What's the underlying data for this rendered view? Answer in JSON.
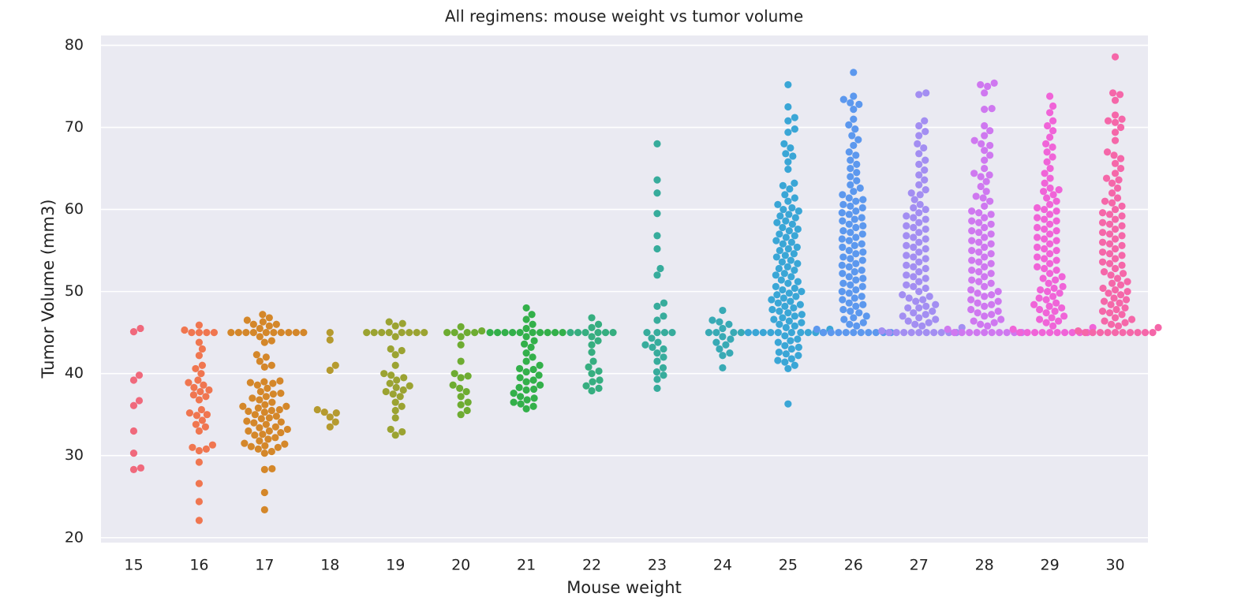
{
  "chart_data": {
    "type": "swarm",
    "title": "All regimens: mouse weight vs tumor volume",
    "x_label": "Mouse weight",
    "y_label": "Tumor Volume (mm3)",
    "categories": [
      "15",
      "16",
      "17",
      "18",
      "19",
      "20",
      "21",
      "22",
      "23",
      "24",
      "25",
      "26",
      "27",
      "28",
      "29",
      "30"
    ],
    "colors": [
      "#f0697c",
      "#f07650",
      "#d4872a",
      "#b59a2f",
      "#9ba332",
      "#6eac32",
      "#33b04a",
      "#36ae80",
      "#37ac9c",
      "#38aab5",
      "#3aa6d6",
      "#5c98ee",
      "#a38ef2",
      "#cf78f0",
      "#f064d8",
      "#f567a9"
    ],
    "values": [
      [
        45.5,
        45.1,
        39.8,
        39.2,
        36.7,
        36.1,
        33.0,
        30.3,
        28.3,
        28.5
      ],
      [
        45.0,
        45.0,
        45.0,
        45.0,
        45.9,
        45.3,
        43.8,
        43.0,
        42.2,
        41.0,
        40.6,
        40.0,
        39.2,
        38.9,
        38.6,
        38.3,
        38.0,
        37.8,
        37.4,
        37.2,
        36.8,
        35.6,
        35.2,
        35.0,
        34.9,
        34.3,
        33.8,
        33.5,
        33.0,
        31.3,
        31.0,
        30.8,
        30.6,
        29.2,
        26.6,
        24.4,
        22.1
      ],
      [
        45.0,
        45.0,
        45.0,
        45.0,
        45.0,
        45.0,
        45.0,
        45.0,
        45.0,
        45.0,
        46.0,
        46.5,
        47.2,
        46.8,
        46.3,
        45.5,
        45.8,
        46.0,
        44.5,
        44.0,
        43.8,
        42.3,
        42.0,
        41.5,
        41.0,
        40.8,
        39.0,
        38.8,
        38.6,
        38.2,
        37.8,
        37.5,
        37.2,
        37.0,
        36.8,
        36.5,
        36.2,
        36.0,
        35.8,
        35.5,
        35.3,
        35.0,
        34.8,
        34.5,
        34.2,
        34.0,
        33.8,
        33.5,
        33.2,
        33.0,
        32.8,
        32.5,
        32.2,
        31.8,
        31.5,
        31.2,
        31.0,
        30.8,
        30.5,
        30.3,
        28.4,
        28.3,
        25.5,
        23.4,
        36.0,
        35.4,
        34.6,
        33.4,
        32.0,
        31.1,
        37.6,
        38.9,
        39.1,
        35.6,
        34.1,
        33.0,
        32.6,
        31.4
      ],
      [
        45.0,
        44.1,
        41.0,
        40.4,
        35.6,
        35.2,
        35.3,
        34.7,
        34.1,
        33.5
      ],
      [
        45.0,
        45.0,
        45.0,
        45.0,
        45.0,
        45.0,
        45.0,
        45.0,
        46.3,
        46.1,
        45.8,
        44.5,
        43.0,
        42.8,
        42.3,
        41.0,
        40.0,
        39.8,
        39.5,
        39.2,
        38.8,
        38.5,
        38.3,
        38.0,
        37.8,
        37.5,
        37.2,
        36.5,
        36.0,
        35.5,
        34.6,
        33.2,
        32.9,
        32.5
      ],
      [
        45.0,
        45.0,
        45.0,
        45.0,
        45.7,
        45.2,
        44.5,
        43.5,
        41.5,
        40.0,
        39.7,
        39.5,
        38.6,
        38.2,
        37.8,
        37.2,
        36.5,
        36.2,
        35.5,
        35.0
      ],
      [
        45.0,
        45.0,
        45.0,
        45.0,
        45.0,
        45.0,
        45.0,
        45.0,
        45.0,
        45.0,
        48.0,
        47.2,
        46.6,
        46.0,
        45.5,
        44.5,
        44.0,
        43.6,
        43.2,
        42.5,
        42.0,
        41.5,
        41.0,
        40.6,
        40.2,
        39.8,
        39.5,
        39.0,
        38.6,
        38.3,
        38.0,
        37.6,
        37.2,
        36.8,
        36.5,
        36.0,
        35.7,
        40.5,
        39.2,
        38.1,
        37.0,
        36.3
      ],
      [
        45.0,
        45.0,
        45.0,
        45.0,
        45.0,
        45.0,
        46.8,
        46.0,
        45.6,
        44.5,
        44.0,
        43.5,
        42.6,
        41.5,
        40.8,
        40.3,
        40.0,
        39.2,
        39.0,
        38.5,
        38.2,
        37.9
      ],
      [
        68.0,
        63.6,
        62.0,
        59.5,
        56.8,
        55.2,
        52.8,
        52.0,
        48.6,
        48.2,
        47.0,
        46.5,
        45.0,
        45.0,
        45.0,
        45.0,
        44.3,
        43.8,
        43.5,
        43.2,
        43.0,
        42.5,
        42.0,
        41.5,
        40.7,
        40.2,
        39.8,
        39.3,
        38.2
      ],
      [
        47.7,
        46.5,
        46.3,
        46.0,
        45.5,
        45.0,
        45.0,
        45.0,
        45.0,
        44.5,
        44.2,
        43.8,
        43.5,
        43.0,
        42.5,
        42.2,
        40.7
      ],
      [
        75.2,
        72.5,
        71.2,
        70.8,
        69.8,
        69.4,
        68.0,
        67.5,
        66.8,
        66.5,
        65.8,
        64.9,
        63.2,
        62.9,
        62.5,
        61.8,
        61.4,
        61.0,
        60.6,
        60.2,
        59.8,
        59.4,
        59.0,
        58.6,
        58.2,
        57.8,
        57.4,
        57.0,
        56.6,
        56.2,
        55.8,
        55.4,
        55.0,
        54.6,
        54.2,
        53.8,
        53.4,
        53.0,
        52.6,
        52.2,
        51.8,
        51.4,
        51.0,
        50.6,
        50.2,
        49.8,
        49.4,
        49.0,
        48.6,
        48.2,
        47.8,
        47.4,
        47.0,
        46.6,
        46.2,
        45.8,
        45.4,
        60.0,
        59.2,
        58.4,
        57.6,
        56.8,
        56.0,
        55.2,
        54.4,
        53.6,
        52.8,
        52.0,
        51.2,
        50.4,
        49.6,
        48.8,
        48.0,
        47.2,
        46.4,
        45.6,
        50.0,
        49.2,
        48.4,
        47.6,
        46.8,
        46.0,
        45.0,
        45.0,
        45.0,
        45.0,
        45.0,
        45.0,
        45.0,
        45.0,
        45.0,
        45.0,
        44.6,
        44.2,
        43.8,
        43.4,
        43.0,
        42.6,
        42.2,
        41.8,
        41.4,
        41.0,
        40.6,
        44.0,
        43.2,
        42.4,
        41.6,
        36.3
      ],
      [
        76.7,
        73.8,
        73.4,
        73.0,
        72.8,
        72.2,
        71.0,
        70.3,
        69.8,
        69.0,
        68.5,
        67.8,
        67.0,
        66.6,
        66.0,
        65.5,
        65.0,
        64.5,
        64.0,
        63.5,
        63.0,
        62.6,
        62.2,
        61.8,
        61.4,
        61.0,
        60.6,
        60.2,
        59.8,
        59.4,
        59.0,
        58.6,
        58.2,
        57.8,
        57.4,
        57.0,
        56.6,
        56.2,
        55.8,
        55.4,
        55.0,
        54.6,
        54.2,
        53.8,
        53.4,
        53.0,
        52.6,
        52.2,
        51.8,
        51.4,
        51.0,
        50.6,
        50.2,
        49.8,
        49.4,
        49.0,
        48.6,
        48.2,
        47.8,
        47.4,
        47.0,
        46.6,
        46.2,
        45.8,
        45.4,
        61.2,
        60.4,
        59.6,
        58.8,
        58.0,
        57.2,
        56.4,
        55.6,
        54.8,
        54.0,
        53.2,
        52.4,
        51.6,
        50.8,
        50.0,
        49.2,
        48.4,
        47.6,
        46.8,
        46.0,
        45.0,
        45.0,
        45.0,
        45.0,
        45.0,
        45.0,
        45.0,
        45.0,
        45.0,
        45.0
      ],
      [
        74.2,
        74.0,
        70.8,
        70.2,
        69.5,
        69.0,
        68.0,
        67.5,
        66.8,
        66.0,
        65.5,
        64.8,
        64.2,
        63.6,
        63.0,
        62.4,
        61.8,
        61.2,
        60.6,
        60.0,
        59.6,
        59.2,
        58.8,
        58.4,
        58.0,
        57.6,
        57.2,
        56.8,
        56.4,
        56.0,
        55.6,
        55.2,
        54.8,
        54.4,
        54.0,
        53.6,
        53.2,
        52.8,
        52.4,
        52.0,
        51.6,
        51.2,
        50.8,
        50.4,
        50.0,
        49.6,
        49.2,
        48.8,
        48.4,
        48.0,
        47.6,
        47.2,
        46.8,
        46.4,
        46.0,
        45.6,
        45.2,
        62.0,
        60.2,
        59.0,
        57.8,
        56.6,
        55.4,
        54.2,
        53.0,
        51.8,
        50.6,
        49.4,
        48.2,
        47.0,
        46.2,
        49.0,
        48.0,
        47.4,
        46.6,
        45.8,
        45.0,
        45.0,
        45.0,
        45.0,
        45.0,
        45.0,
        45.0,
        45.0,
        45.0,
        45.0
      ],
      [
        75.4,
        75.2,
        75.0,
        74.2,
        72.3,
        72.2,
        70.2,
        69.6,
        69.0,
        68.4,
        68.0,
        67.8,
        67.2,
        66.6,
        66.0,
        65.0,
        64.4,
        64.0,
        63.4,
        62.8,
        62.2,
        61.6,
        61.0,
        60.4,
        59.8,
        59.4,
        59.0,
        58.6,
        58.2,
        57.8,
        57.4,
        57.0,
        56.6,
        56.2,
        55.8,
        55.4,
        55.0,
        54.6,
        54.2,
        53.8,
        53.4,
        53.0,
        52.6,
        52.2,
        51.8,
        51.4,
        51.0,
        50.6,
        50.2,
        49.8,
        49.4,
        49.0,
        48.6,
        48.2,
        47.8,
        47.4,
        47.0,
        46.6,
        46.2,
        45.8,
        45.4,
        64.2,
        61.4,
        59.6,
        58.4,
        57.2,
        56.0,
        54.8,
        53.6,
        52.4,
        51.2,
        50.0,
        48.8,
        47.6,
        46.4,
        49.6,
        48.4,
        47.2,
        46.0,
        45.0,
        45.0,
        45.0,
        45.0,
        45.0,
        45.0,
        45.0,
        45.0,
        45.0,
        45.0
      ],
      [
        73.8,
        72.6,
        71.8,
        70.8,
        70.2,
        69.6,
        68.8,
        68.0,
        67.6,
        67.0,
        66.4,
        65.8,
        65.0,
        64.4,
        63.8,
        63.2,
        62.6,
        62.2,
        61.8,
        61.4,
        61.0,
        60.6,
        60.2,
        59.8,
        59.4,
        59.0,
        58.6,
        58.2,
        57.8,
        57.4,
        57.0,
        56.6,
        56.2,
        55.8,
        55.4,
        55.0,
        54.6,
        54.2,
        53.8,
        53.4,
        53.0,
        52.6,
        52.2,
        51.8,
        51.4,
        51.0,
        50.6,
        50.2,
        49.8,
        49.4,
        49.0,
        48.6,
        48.2,
        47.8,
        47.4,
        47.0,
        46.6,
        46.2,
        45.8,
        45.4,
        62.4,
        60.0,
        58.8,
        57.6,
        56.4,
        55.2,
        54.0,
        52.8,
        51.6,
        50.4,
        49.2,
        48.0,
        46.8,
        50.0,
        48.4,
        47.6,
        46.4,
        45.6,
        45.0,
        45.0,
        45.0,
        45.0,
        45.0,
        45.0,
        45.0,
        45.0,
        45.0,
        45.0
      ],
      [
        78.6,
        74.2,
        74.0,
        73.3,
        71.5,
        71.0,
        70.8,
        70.6,
        70.0,
        69.4,
        68.4,
        67.0,
        66.6,
        66.2,
        65.6,
        65.0,
        64.4,
        63.8,
        63.2,
        62.6,
        62.0,
        61.4,
        60.8,
        60.4,
        60.0,
        59.6,
        59.2,
        58.8,
        58.4,
        58.0,
        57.6,
        57.2,
        56.8,
        56.4,
        56.0,
        55.6,
        55.2,
        54.8,
        54.4,
        54.0,
        53.6,
        53.2,
        52.8,
        52.4,
        52.0,
        51.6,
        51.2,
        50.8,
        50.4,
        50.0,
        49.6,
        49.2,
        48.8,
        48.4,
        48.0,
        47.6,
        47.2,
        46.8,
        46.4,
        46.0,
        45.6,
        45.2,
        63.6,
        61.0,
        59.4,
        58.2,
        57.0,
        55.8,
        54.6,
        53.4,
        52.2,
        51.0,
        49.8,
        48.6,
        47.4,
        46.2,
        50.2,
        49.0,
        47.8,
        46.6,
        45.8,
        45.0,
        45.0,
        45.0,
        45.0,
        45.0,
        45.0,
        45.0,
        45.0,
        45.0,
        45.0
      ]
    ],
    "ylim": [
      19.4,
      81.2
    ],
    "yticks": [
      20,
      30,
      40,
      50,
      60,
      70,
      80
    ],
    "grid": true
  }
}
